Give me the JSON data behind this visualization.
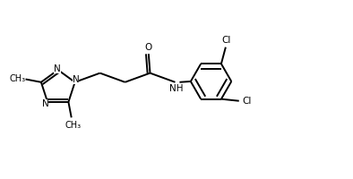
{
  "background_color": "#ffffff",
  "line_color": "#000000",
  "line_width": 1.4,
  "font_size": 7.5,
  "figsize": [
    3.94,
    2.0
  ],
  "dpi": 100,
  "xlim": [
    0,
    9.5
  ],
  "ylim": [
    0,
    4.5
  ]
}
